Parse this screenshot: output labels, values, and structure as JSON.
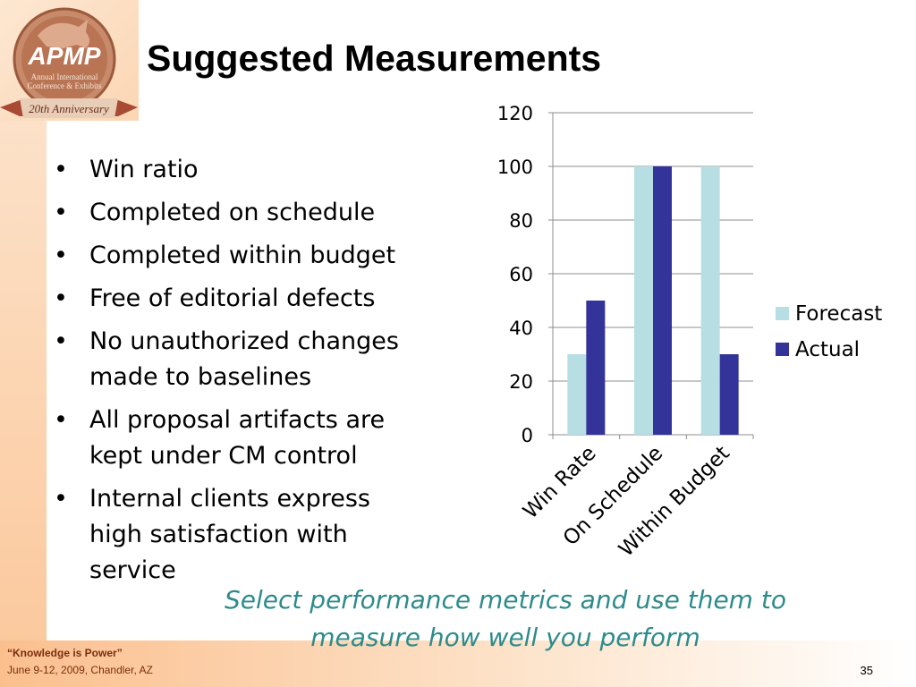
{
  "logo": {
    "brand": "APMP",
    "line1": "Annual International",
    "line2": "Conference & Exhibits",
    "ribbon": "20th Anniversary"
  },
  "title": "Suggested Measurements",
  "bullets": [
    {
      "lines": [
        "Win ratio"
      ]
    },
    {
      "lines": [
        "Completed on schedule"
      ]
    },
    {
      "lines": [
        "Completed within budget"
      ]
    },
    {
      "lines": [
        "Free of editorial defects"
      ]
    },
    {
      "lines": [
        "No unauthorized changes",
        "made to baselines"
      ]
    },
    {
      "lines": [
        "All proposal artifacts are",
        "kept under CM control"
      ]
    },
    {
      "lines": [
        "Internal clients express",
        "high satisfaction with",
        "service"
      ]
    }
  ],
  "bullet_glyph": "•",
  "chart_data": {
    "type": "bar",
    "categories": [
      "Win Rate",
      "On Schedule",
      "Within Budget"
    ],
    "series": [
      {
        "name": "Forecast",
        "values": [
          30,
          100,
          100
        ],
        "color": "#b7dee3"
      },
      {
        "name": "Actual",
        "values": [
          50,
          100,
          30
        ],
        "color": "#33339a"
      }
    ],
    "ylim": [
      0,
      120
    ],
    "yticks": [
      0,
      20,
      40,
      60,
      80,
      100,
      120
    ],
    "grid": true,
    "legend": "right",
    "title": "",
    "xlabel": "",
    "ylabel": ""
  },
  "caption": {
    "line1": "Select performance metrics and use them to",
    "line2": "measure how well you perform"
  },
  "footer": {
    "quote": "“Knowledge is Power”",
    "date": "June 9-12, 2009, Chandler, AZ",
    "page": "35"
  },
  "colors": {
    "caption": "#2e8b8b",
    "footer_text": "#7a2e0e",
    "frame": "#fbc79a"
  }
}
